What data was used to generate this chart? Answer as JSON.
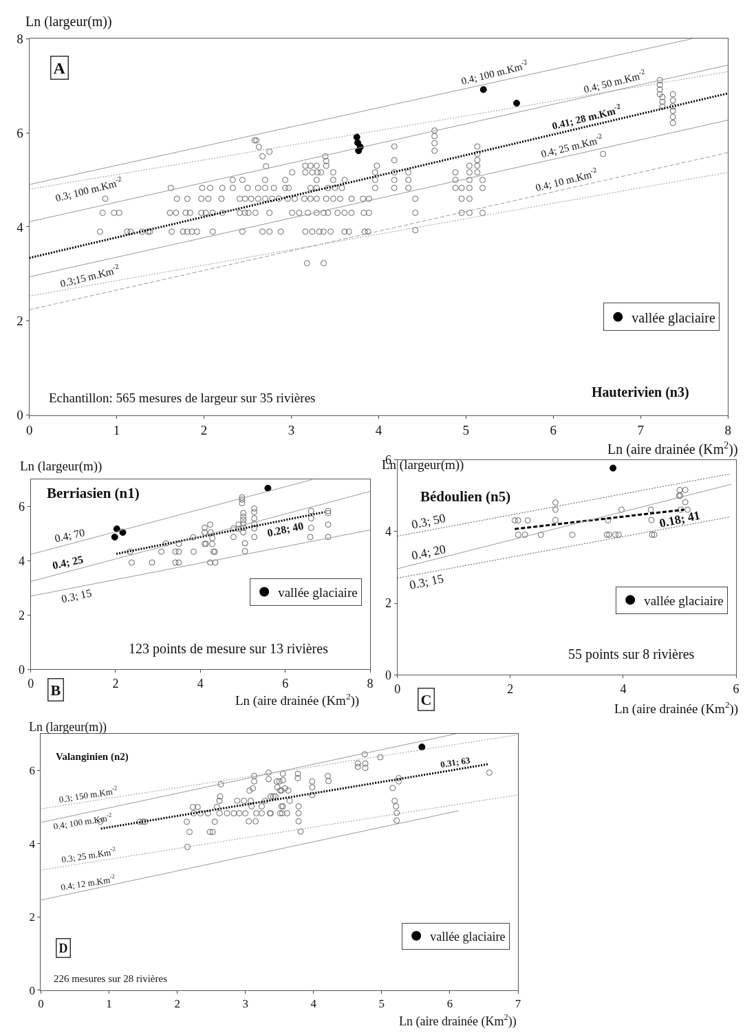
{
  "chart_data": [
    {
      "type": "scatter",
      "title": "Hauterivien (n3)",
      "xlabel": "Ln (aire drainée (Km$^{2}$))",
      "ylabel": "Ln (largeur(m))",
      "xlim": [
        0,
        8
      ],
      "xticks": [
        0,
        1,
        2,
        3,
        4,
        5,
        6,
        7,
        8
      ],
      "ylim": [
        0,
        8
      ],
      "yticks": [
        0,
        2,
        4,
        6,
        8
      ],
      "grid": false,
      "legend": "bottom right",
      "series": [
        {
          "type": "scatter",
          "marker": "circle-open",
          "color": "#666666",
          "x": [
            0.81,
            1.12,
            1.16,
            1.29,
            1.36,
            1.38,
            1.63,
            1.76,
            1.81,
            1.86,
            1.92,
            2.1,
            2.44,
            2.67,
            2.75,
            2.88,
            3.16,
            3.24,
            3.32,
            3.37,
            3.45,
            3.61,
            3.66,
            3.84,
            3.88,
            4.42,
            0.84,
            0.97,
            1.03,
            1.61,
            1.68,
            1.79,
            1.84,
            1.97,
            2.02,
            2.1,
            2.21,
            2.41,
            2.47,
            2.51,
            2.59,
            2.75,
            3.01,
            3.09,
            3.19,
            3.29,
            3.37,
            3.42,
            3.53,
            3.61,
            3.69,
            3.83,
            3.89,
            4.42,
            4.95,
            5.04,
            5.19,
            0.87,
            1.69,
            1.81,
            1.97,
            2.05,
            2.2,
            2.41,
            2.47,
            2.54,
            2.62,
            2.7,
            2.78,
            2.86,
            2.96,
            3.04,
            3.15,
            3.22,
            3.29,
            3.4,
            3.48,
            3.56,
            3.69,
            3.82,
            3.89,
            4.42,
            4.95,
            5.04,
            1.62,
            1.98,
            2.07,
            2.21,
            2.33,
            2.5,
            2.62,
            2.7,
            2.8,
            2.93,
            2.97,
            3.22,
            3.29,
            3.42,
            3.5,
            3.58,
            3.96,
            4.18,
            4.34,
            4.88,
            4.95,
            5.04,
            5.19,
            2.33,
            2.44,
            2.7,
            2.93,
            3.29,
            3.48,
            3.61,
            3.96,
            4.18,
            4.34,
            4.88,
            5.04,
            5.19,
            3.01,
            3.16,
            3.24,
            3.3,
            3.34,
            3.48,
            3.96,
            4.18,
            4.34,
            4.88,
            5.04,
            5.13,
            3.16,
            3.22,
            3.29,
            3.4,
            3.98,
            5.04,
            5.13,
            2.71,
            2.67,
            2.75,
            2.63,
            2.58,
            2.6,
            3.39,
            3.4,
            4.18,
            4.18,
            4.64,
            4.64,
            4.64,
            4.64,
            5.13,
            5.13,
            5.13,
            6.57,
            3.18,
            3.37,
            7.22,
            7.22,
            7.22,
            7.22,
            7.25,
            7.25,
            7.25,
            7.37,
            7.37,
            7.37,
            7.37,
            7.37,
            7.37
          ],
          "values": [
            3.9,
            3.9,
            3.9,
            3.9,
            3.9,
            3.9,
            3.9,
            3.9,
            3.9,
            3.9,
            3.9,
            3.9,
            3.9,
            3.9,
            3.9,
            3.9,
            3.9,
            3.9,
            3.9,
            3.9,
            3.9,
            3.9,
            3.9,
            3.9,
            3.9,
            3.93,
            4.3,
            4.3,
            4.3,
            4.3,
            4.3,
            4.3,
            4.3,
            4.3,
            4.3,
            4.3,
            4.3,
            4.3,
            4.3,
            4.3,
            4.3,
            4.3,
            4.3,
            4.3,
            4.3,
            4.3,
            4.3,
            4.3,
            4.3,
            4.3,
            4.3,
            4.3,
            4.3,
            4.3,
            4.3,
            4.3,
            4.3,
            4.6,
            4.6,
            4.6,
            4.6,
            4.6,
            4.6,
            4.6,
            4.6,
            4.6,
            4.6,
            4.6,
            4.6,
            4.6,
            4.6,
            4.6,
            4.6,
            4.6,
            4.6,
            4.6,
            4.6,
            4.6,
            4.6,
            4.6,
            4.6,
            4.6,
            4.6,
            4.6,
            4.83,
            4.83,
            4.83,
            4.83,
            4.83,
            4.83,
            4.83,
            4.83,
            4.83,
            4.83,
            4.83,
            4.83,
            4.83,
            4.83,
            4.83,
            4.83,
            4.83,
            4.83,
            4.83,
            4.83,
            4.83,
            4.83,
            4.83,
            5.0,
            5.0,
            5.0,
            5.0,
            5.0,
            5.0,
            5.0,
            5.0,
            5.0,
            5.0,
            5.0,
            5.0,
            5.0,
            5.16,
            5.16,
            5.16,
            5.16,
            5.16,
            5.16,
            5.16,
            5.16,
            5.16,
            5.16,
            5.16,
            5.16,
            5.3,
            5.3,
            5.3,
            5.3,
            5.3,
            5.3,
            5.3,
            5.29,
            5.5,
            5.6,
            5.7,
            5.84,
            5.84,
            5.5,
            5.4,
            5.71,
            5.42,
            6.05,
            5.93,
            5.78,
            5.62,
            5.71,
            5.55,
            5.42,
            5.55,
            3.23,
            3.23,
            7.12,
            7.02,
            6.92,
            6.82,
            6.76,
            6.66,
            6.56,
            6.82,
            6.69,
            6.56,
            6.47,
            6.34,
            6.21
          ]
        },
        {
          "type": "scatter",
          "marker": "circle",
          "name": "vallée glaciaire",
          "color": "#000000",
          "x": [
            3.75,
            3.76,
            3.79,
            3.77,
            5.2,
            5.58
          ],
          "values": [
            5.91,
            5.79,
            5.7,
            5.62,
            6.92,
            6.63
          ]
        },
        {
          "type": "line",
          "line_style": "dotted",
          "color": "#000000",
          "x": [
            0,
            8
          ],
          "values": [
            3.34,
            6.84
          ]
        },
        {
          "type": "line",
          "line_style": "solid",
          "color": "#999999",
          "x": [
            0,
            7.59
          ],
          "values": [
            4.9,
            8.0
          ]
        },
        {
          "type": "line",
          "line_style": "dotted",
          "color": "#999999",
          "x": [
            0,
            8
          ],
          "values": [
            4.8,
            7.3
          ]
        },
        {
          "type": "line",
          "line_style": "solid",
          "color": "#999999",
          "x": [
            0,
            8
          ],
          "values": [
            4.11,
            7.44
          ]
        },
        {
          "type": "line",
          "line_style": "solid",
          "color": "#999999",
          "x": [
            0,
            8
          ],
          "values": [
            2.94,
            6.27
          ]
        },
        {
          "type": "line",
          "line_style": "dotted",
          "color": "#999999",
          "x": [
            0,
            8
          ],
          "values": [
            2.53,
            5.16
          ]
        },
        {
          "type": "line",
          "line_style": "dashed",
          "color": "#999999",
          "x": [
            0,
            8
          ],
          "values": [
            2.24,
            5.58
          ]
        }
      ],
      "annotations": [
        "A",
        "Echantillon: 565 mesures de largeur sur 35 rivières",
        {
          "text": "0.3; 100 m.Km$^{-2}$",
          "x": 0.68,
          "y": 5.01
        },
        {
          "text": "0.3;15 m.Km$^{-2}$",
          "x": 0.69,
          "y": 2.76
        },
        {
          "text": "0.4; 100 m.Km$^{-2}$",
          "x": 5.33,
          "y": 7.08
        },
        {
          "text": "0.4; 50 m.Km$^{-2}$",
          "x": 6.7,
          "y": 6.9
        },
        {
          "text": "0.41; 28 m.Km$^{-2}$",
          "x": 6.38,
          "y": 6.13
        },
        {
          "text": "0.4; 25 m.Km$^{-2}$",
          "x": 6.21,
          "y": 5.52
        },
        {
          "text": "0.4; 10 m.Km$^{-2}$",
          "x": 6.15,
          "y": 4.81
        }
      ]
    },
    {
      "type": "scatter",
      "title": "Berriasien (n1)",
      "xlabel": "Ln (aire drainée (Km$^{2}$))",
      "ylabel": "Ln (largeur(m))",
      "xlim": [
        0,
        8
      ],
      "xticks": [
        0,
        2,
        4,
        6,
        8
      ],
      "ylim": [
        0,
        7
      ],
      "yticks": [
        0,
        2,
        4,
        6
      ],
      "grid": false,
      "legend": "bottom right",
      "series": [
        {
          "type": "scatter",
          "marker": "circle-open",
          "color": "#666666",
          "x": [
            2.34,
            2.38,
            2.86,
            3.08,
            3.19,
            3.41,
            3.49,
            3.41,
            3.49,
            3.49,
            3.84,
            3.83,
            4.1,
            4.1,
            4.1,
            4.13,
            4.23,
            4.24,
            4.28,
            4.28,
            4.31,
            4.23,
            4.35,
            4.34,
            4.78,
            4.78,
            4.9,
            4.9,
            4.98,
            4.98,
            4.98,
            5.01,
            5.01,
            5.01,
            5.01,
            5.01,
            5.05,
            5.05,
            5.02,
            5.27,
            5.27,
            5.27,
            5.27,
            5.27,
            5.27,
            6.61,
            6.61,
            6.61,
            6.59,
            7.01,
            7.01,
            7.01,
            7.01
          ],
          "values": [
            4.34,
            3.94,
            3.94,
            4.34,
            4.65,
            3.94,
            3.94,
            4.34,
            4.34,
            4.63,
            4.34,
            4.87,
            5.22,
            5.05,
            4.63,
            4.63,
            5.34,
            5.05,
            4.84,
            4.63,
            4.34,
            3.94,
            3.94,
            4.34,
            4.88,
            5.2,
            5.34,
            5.18,
            6.34,
            6.26,
            6.13,
            5.76,
            5.63,
            5.51,
            5.38,
            5.05,
            4.65,
            4.36,
            5.22,
            5.93,
            5.8,
            5.57,
            5.37,
            5.2,
            4.88,
            5.84,
            5.57,
            5.22,
            4.88,
            5.84,
            5.76,
            5.34,
            4.88
          ]
        },
        {
          "type": "scatter",
          "marker": "circle",
          "name": "vallée glaciaire",
          "color": "#000000",
          "x": [
            2.03,
            2.17,
            1.98,
            5.59
          ],
          "values": [
            5.18,
            5.05,
            4.88,
            6.68
          ]
        },
        {
          "type": "line",
          "line_style": "dotted",
          "color": "#000000",
          "x": [
            2.02,
            6.93
          ],
          "values": [
            4.26,
            5.8
          ]
        },
        {
          "type": "line",
          "line_style": "solid",
          "color": "#999999",
          "x": [
            0,
            6.64
          ],
          "values": [
            4.24,
            7.0
          ]
        },
        {
          "type": "line",
          "line_style": "solid",
          "color": "#999999",
          "x": [
            0,
            8
          ],
          "values": [
            3.24,
            6.56
          ]
        },
        {
          "type": "line",
          "line_style": "solid",
          "color": "#999999",
          "x": [
            0,
            8
          ],
          "values": [
            2.7,
            5.14
          ]
        }
      ],
      "annotations": [
        "B",
        "123 points de mesure sur 13 rivières",
        {
          "text": "0.4; 70",
          "x": 0.91,
          "y": 4.62
        },
        {
          "text": "0.4; 25",
          "x": 0.88,
          "y": 3.61
        },
        {
          "text": "0.3; 15",
          "x": 1.07,
          "y": 3.03
        },
        {
          "text": "0.28; 40",
          "x": 6.0,
          "y": 5.51
        }
      ]
    },
    {
      "type": "scatter",
      "title": "Bédoulien (n5)",
      "xlabel": "Ln (aire drainée (Km$^{2}$))",
      "ylabel": "Ln (largeur(m))",
      "xlim": [
        0,
        6
      ],
      "xticks": [
        0,
        2,
        4,
        6
      ],
      "ylim": [
        0,
        6
      ],
      "yticks": [
        0,
        2,
        4,
        6
      ],
      "grid": false,
      "legend": "bottom right",
      "series": [
        {
          "type": "scatter",
          "marker": "circle-open",
          "color": "#666666",
          "x": [
            2.08,
            2.14,
            2.31,
            2.14,
            2.26,
            2.54,
            2.8,
            2.8,
            2.8,
            3.1,
            3.73,
            3.71,
            3.75,
            3.86,
            3.92,
            3.97,
            4.49,
            4.5,
            4.51,
            4.55,
            5.0,
            5.1,
            4.99,
            5.01,
            5.1,
            5.02,
            5.14
          ],
          "values": [
            4.31,
            4.31,
            4.31,
            3.91,
            3.91,
            3.91,
            4.81,
            4.61,
            4.32,
            3.91,
            4.31,
            3.91,
            3.91,
            3.91,
            3.91,
            4.61,
            4.61,
            4.32,
            3.91,
            3.91,
            5.16,
            5.16,
            5.0,
            5.0,
            4.82,
            4.61,
            4.61
          ]
        },
        {
          "type": "scatter",
          "marker": "circle",
          "name": "vallée glaciaire",
          "color": "#000000",
          "x": [
            3.82
          ],
          "values": [
            5.77
          ]
        },
        {
          "type": "line",
          "line_style": "dashed",
          "color": "#000000",
          "x": [
            2.08,
            5.08
          ],
          "values": [
            4.07,
            4.61
          ]
        },
        {
          "type": "line",
          "line_style": "dotted",
          "color": "#555555",
          "x": [
            0,
            5.9
          ],
          "values": [
            3.87,
            5.61
          ]
        },
        {
          "type": "line",
          "line_style": "solid",
          "color": "#999999",
          "x": [
            0,
            5.92
          ],
          "values": [
            2.96,
            5.32
          ]
        },
        {
          "type": "line",
          "line_style": "dotted",
          "color": "#555555",
          "x": [
            0,
            5.9
          ],
          "values": [
            2.7,
            4.41
          ]
        }
      ],
      "annotations": [
        "C",
        "55 points sur 8 rivières",
        {
          "text": "0.3; 50",
          "x": 0.55,
          "y": 4.03
        },
        {
          "text": "0.4; 20",
          "x": 0.55,
          "y": 3.18
        },
        {
          "text": "0.3; 15",
          "x": 0.51,
          "y": 2.85
        },
        {
          "text": "0.18; 41",
          "x": 5.0,
          "y": 4.6
        }
      ]
    },
    {
      "type": "scatter",
      "title": "Valanginien (n2)",
      "xlabel": "Ln (aire drainée (Km$^{2}$))",
      "ylabel": "Ln (largeur(m))",
      "xlim": [
        0,
        7
      ],
      "xticks": [
        0,
        1,
        2,
        3,
        4,
        5,
        6,
        7
      ],
      "ylim": [
        0,
        7
      ],
      "yticks": [
        0,
        2,
        4,
        6
      ],
      "grid": false,
      "legend": "bottom right",
      "series": [
        {
          "type": "scatter",
          "marker": "circle-open",
          "color": "#666666",
          "x": [
            0.87,
            1.45,
            1.5,
            1.53,
            2.14,
            2.18,
            2.15,
            2.23,
            2.3,
            2.24,
            2.34,
            2.45,
            2.48,
            2.52,
            2.55,
            2.58,
            2.62,
            2.63,
            2.64,
            2.62,
            2.73,
            2.83,
            2.91,
            3.0,
            2.88,
            2.98,
            3.05,
            3.15,
            3.06,
            3.11,
            3.13,
            3.13,
            3.08,
            3.09,
            3.16,
            3.24,
            3.36,
            3.24,
            3.29,
            3.41,
            3.34,
            3.34,
            3.46,
            3.47,
            3.51,
            3.53,
            3.51,
            3.55,
            3.55,
            3.5,
            3.58,
            3.63,
            3.53,
            3.44,
            3.37,
            3.65,
            3.55,
            3.54,
            3.61,
            3.37,
            3.77,
            3.77,
            3.78,
            3.78,
            3.78,
            3.81,
            3.98,
            3.98,
            3.98,
            4.21,
            4.22,
            4.75,
            4.65,
            4.65,
            4.76,
            4.76,
            4.98,
            5.16,
            5.25,
            5.25,
            5.19,
            5.21,
            5.22,
            5.22,
            6.58
          ],
          "values": [
            4.6,
            4.6,
            4.6,
            4.6,
            4.6,
            4.32,
            3.91,
            5.0,
            5.0,
            4.83,
            4.83,
            4.83,
            4.32,
            4.32,
            4.6,
            5.0,
            5.17,
            5.29,
            5.62,
            4.83,
            4.83,
            4.83,
            4.83,
            4.83,
            5.17,
            5.17,
            4.61,
            4.61,
            5.45,
            5.51,
            5.7,
            5.85,
            5.17,
            5.02,
            4.83,
            4.83,
            4.83,
            5.02,
            5.17,
            5.29,
            5.94,
            5.76,
            5.7,
            5.54,
            5.45,
            5.02,
            4.83,
            5.91,
            5.73,
            5.7,
            5.51,
            5.45,
            5.45,
            5.29,
            5.29,
            5.17,
            5.02,
            4.83,
            4.83,
            4.83,
            5.91,
            5.79,
            5.02,
            4.83,
            4.61,
            4.33,
            5.7,
            5.54,
            5.33,
            5.85,
            5.71,
            6.44,
            6.19,
            6.1,
            6.19,
            6.07,
            6.36,
            5.52,
            5.79,
            5.7,
            5.17,
            5.02,
            4.84,
            4.63,
            5.94
          ]
        },
        {
          "type": "scatter",
          "marker": "circle",
          "name": "vallée glaciaire",
          "color": "#000000",
          "x": [
            5.59
          ],
          "values": [
            6.64
          ]
        },
        {
          "type": "line",
          "line_style": "dotted",
          "color": "#000000",
          "x": [
            0.88,
            6.56
          ],
          "values": [
            4.41,
            6.17
          ]
        },
        {
          "type": "line",
          "line_style": "dotted",
          "color": "#999999",
          "x": [
            0,
            6.99
          ],
          "values": [
            4.95,
            6.97
          ]
        },
        {
          "type": "line",
          "line_style": "solid",
          "color": "#999999",
          "x": [
            0,
            6.09
          ],
          "values": [
            4.58,
            7.0
          ]
        },
        {
          "type": "line",
          "line_style": "dotted",
          "color": "#999999",
          "x": [
            0,
            6.99
          ],
          "values": [
            3.28,
            5.33
          ]
        },
        {
          "type": "line",
          "line_style": "solid",
          "color": "#999999",
          "x": [
            0,
            6.13
          ],
          "values": [
            2.46,
            4.9
          ]
        }
      ],
      "annotations": [
        "D",
        "226 mesures sur 28 rivières",
        {
          "text": "0.3; 150 m.Km$^{-2}$",
          "x": 0.7,
          "y": 5.15
        },
        {
          "text": "0.4; 100 m.Km$^{-2}$",
          "x": 0.62,
          "y": 4.83
        },
        {
          "text": "0.3; 25 m.Km$^{-2}$",
          "x": 0.7,
          "y": 3.49
        },
        {
          "text": "0.4; 12 m.Km$^{-2}$",
          "x": 0.69,
          "y": 2.73
        },
        {
          "text": "0.31; 63",
          "x": 6.08,
          "y": 6.02
        }
      ]
    }
  ]
}
